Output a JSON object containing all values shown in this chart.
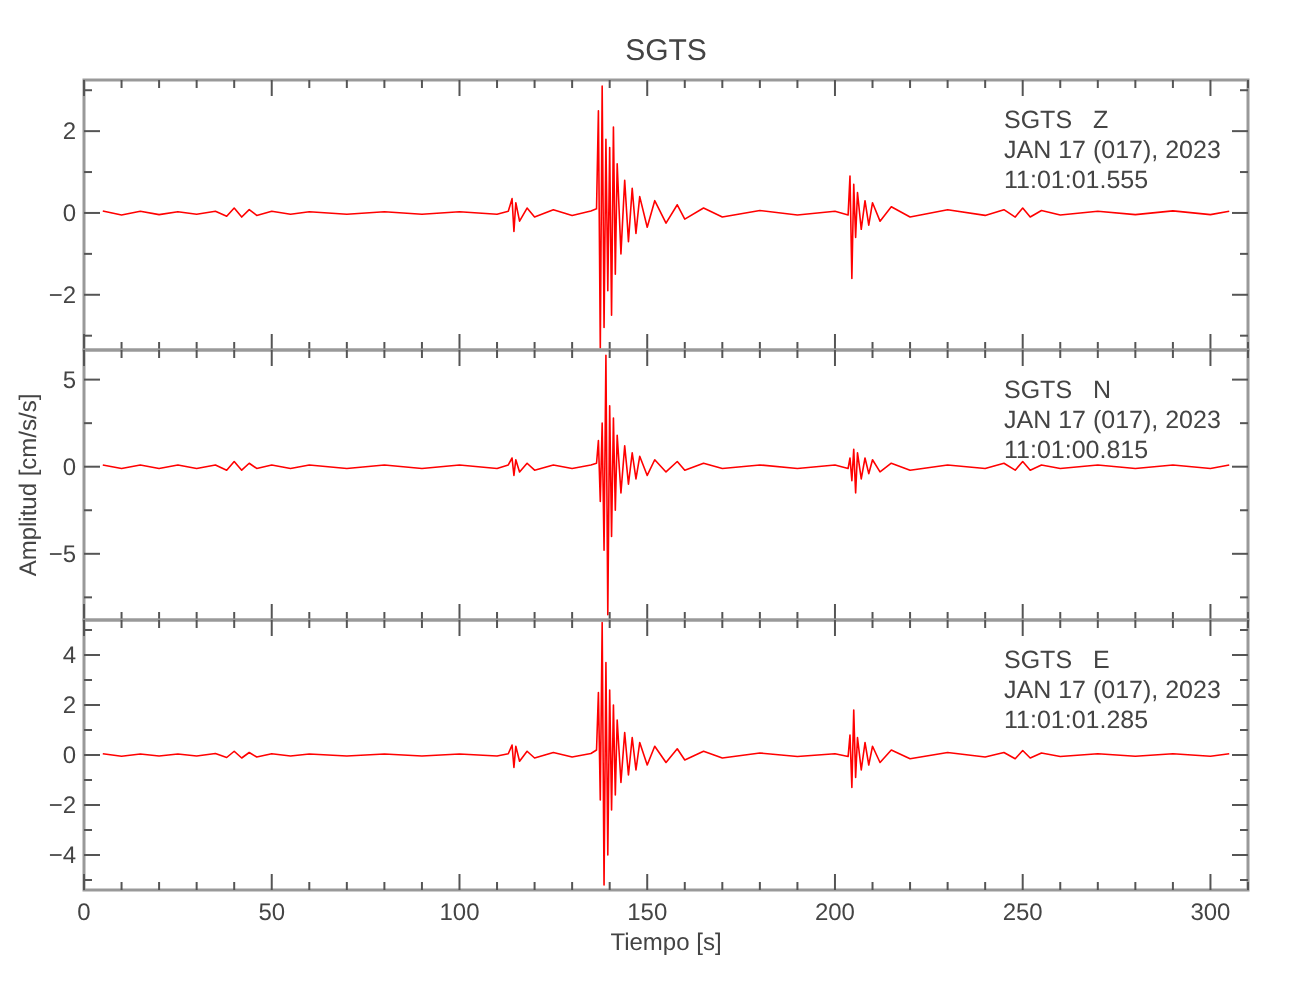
{
  "chart_data": [
    {
      "type": "line",
      "title": "SGTS",
      "annotations": [
        "SGTS   Z",
        "JAN 17 (017), 2023",
        "11:01:01.555"
      ],
      "x": [
        5,
        10,
        15,
        20,
        25,
        30,
        35,
        38,
        40,
        42,
        44,
        46,
        50,
        55,
        60,
        70,
        80,
        90,
        100,
        110,
        113,
        114,
        114.5,
        115,
        116,
        118,
        120,
        125,
        130,
        135,
        136.5,
        137,
        137.5,
        138,
        138.5,
        139,
        139.5,
        140,
        140.5,
        141,
        141.5,
        142,
        143,
        144,
        145,
        146,
        147,
        148,
        150,
        152,
        155,
        158,
        160,
        165,
        170,
        180,
        190,
        200,
        203.5,
        204,
        204.5,
        205,
        205.5,
        206,
        207,
        208,
        209,
        210,
        212,
        215,
        220,
        230,
        240,
        245,
        248,
        250,
        252,
        255,
        260,
        270,
        280,
        290,
        300,
        305
      ],
      "series": [
        {
          "color": "#ff0000",
          "values": [
            0.05,
            -0.05,
            0.04,
            -0.04,
            0.03,
            -0.03,
            0.04,
            -0.08,
            0.12,
            -0.1,
            0.08,
            -0.06,
            0.04,
            -0.03,
            0.03,
            -0.03,
            0.03,
            -0.03,
            0.03,
            -0.03,
            0.04,
            0.35,
            -0.45,
            0.25,
            -0.2,
            0.12,
            -0.1,
            0.08,
            -0.06,
            0.05,
            0.1,
            2.5,
            -3.3,
            3.1,
            -2.8,
            1.8,
            -1.9,
            1.6,
            -2.5,
            2.1,
            -1.5,
            1.2,
            -1.0,
            0.8,
            -0.7,
            0.6,
            -0.5,
            0.4,
            -0.35,
            0.3,
            -0.25,
            0.2,
            -0.15,
            0.12,
            -0.1,
            0.06,
            -0.05,
            0.04,
            -0.05,
            0.9,
            -1.6,
            0.7,
            -0.6,
            0.5,
            -0.4,
            0.3,
            -0.3,
            0.25,
            -0.2,
            0.15,
            -0.1,
            0.08,
            -0.06,
            0.08,
            -0.1,
            0.12,
            -0.1,
            0.06,
            -0.05,
            0.04,
            -0.04,
            0.05,
            -0.04,
            0.04
          ]
        }
      ],
      "xlim": [
        0,
        310
      ],
      "ylim": [
        -3.35,
        3.25
      ],
      "xticks": [
        0,
        {
          "value": 10,
          "label": null
        },
        {
          "value": 20,
          "label": null
        },
        {
          "value": 30,
          "label": null
        },
        {
          "value": 40,
          "label": null
        },
        50,
        {
          "value": 60,
          "label": null
        },
        {
          "value": 70,
          "label": null
        },
        {
          "value": 80,
          "label": null
        },
        {
          "value": 90,
          "label": null
        },
        100,
        {
          "value": 110,
          "label": null
        },
        {
          "value": 120,
          "label": null
        },
        {
          "value": 130,
          "label": null
        },
        {
          "value": 140,
          "label": null
        },
        150,
        {
          "value": 160,
          "label": null
        },
        {
          "value": 170,
          "label": null
        },
        {
          "value": 180,
          "label": null
        },
        {
          "value": 190,
          "label": null
        },
        200,
        {
          "value": 210,
          "label": null
        },
        {
          "value": 220,
          "label": null
        },
        {
          "value": 230,
          "label": null
        },
        {
          "value": 240,
          "label": null
        },
        250,
        {
          "value": 260,
          "label": null
        },
        {
          "value": 270,
          "label": null
        },
        {
          "value": 280,
          "label": null
        },
        {
          "value": 290,
          "label": null
        },
        300,
        {
          "value": 310,
          "label": null
        }
      ],
      "yticks": [
        {
          "value": -3,
          "label": null
        },
        {
          "value": -2,
          "label": "−2"
        },
        {
          "value": -1,
          "label": null
        },
        0,
        {
          "value": 1,
          "label": null
        },
        2,
        {
          "value": 3,
          "label": null
        }
      ],
      "tick_labels": "y",
      "grid": false,
      "marker": "none",
      "line_style": "solid"
    },
    {
      "type": "line",
      "ylabel": "Amplitud [cm/s/s]",
      "annotations": [
        "SGTS   N",
        "JAN 17 (017), 2023",
        "11:01:00.815"
      ],
      "x": [
        5,
        10,
        15,
        20,
        25,
        30,
        35,
        38,
        40,
        42,
        44,
        46,
        50,
        55,
        60,
        70,
        80,
        90,
        100,
        110,
        113,
        114,
        114.5,
        115,
        116,
        118,
        120,
        125,
        130,
        135,
        136.5,
        137,
        137.5,
        138,
        138.5,
        139,
        139.5,
        140,
        140.5,
        141,
        141.5,
        142,
        143,
        144,
        145,
        146,
        147,
        148,
        150,
        152,
        155,
        158,
        160,
        165,
        170,
        180,
        190,
        200,
        203.5,
        204,
        204.5,
        205,
        205.5,
        206,
        207,
        208,
        209,
        210,
        212,
        215,
        220,
        230,
        240,
        245,
        248,
        250,
        252,
        255,
        260,
        270,
        280,
        290,
        300,
        305
      ],
      "series": [
        {
          "color": "#ff0000",
          "values": [
            0.1,
            -0.1,
            0.1,
            -0.1,
            0.1,
            -0.1,
            0.1,
            -0.2,
            0.3,
            -0.2,
            0.2,
            -0.1,
            0.1,
            -0.1,
            0.1,
            -0.1,
            0.1,
            -0.1,
            0.1,
            -0.1,
            0.1,
            0.5,
            -0.5,
            0.4,
            -0.3,
            0.2,
            -0.2,
            0.1,
            -0.1,
            0.1,
            0.2,
            1.5,
            -2.0,
            2.5,
            -4.8,
            6.4,
            -8.5,
            3.5,
            -4.0,
            2.8,
            -2.5,
            1.8,
            -1.5,
            1.2,
            -1.0,
            0.8,
            -0.7,
            0.6,
            -0.5,
            0.4,
            -0.3,
            0.3,
            -0.2,
            0.2,
            -0.1,
            0.1,
            -0.1,
            0.1,
            -0.1,
            0.5,
            -0.8,
            1.0,
            -1.5,
            0.8,
            -0.7,
            0.5,
            -0.4,
            0.4,
            -0.3,
            0.2,
            -0.2,
            0.1,
            -0.1,
            0.2,
            -0.2,
            0.3,
            -0.2,
            0.1,
            -0.1,
            0.1,
            -0.1,
            0.1,
            -0.1,
            0.1
          ]
        }
      ],
      "xlim": [
        0,
        310
      ],
      "ylim": [
        -8.8,
        6.7
      ],
      "xticks": [
        0,
        {
          "value": 10,
          "label": null
        },
        {
          "value": 20,
          "label": null
        },
        {
          "value": 30,
          "label": null
        },
        {
          "value": 40,
          "label": null
        },
        50,
        {
          "value": 60,
          "label": null
        },
        {
          "value": 70,
          "label": null
        },
        {
          "value": 80,
          "label": null
        },
        {
          "value": 90,
          "label": null
        },
        100,
        {
          "value": 110,
          "label": null
        },
        {
          "value": 120,
          "label": null
        },
        {
          "value": 130,
          "label": null
        },
        {
          "value": 140,
          "label": null
        },
        150,
        {
          "value": 160,
          "label": null
        },
        {
          "value": 170,
          "label": null
        },
        {
          "value": 180,
          "label": null
        },
        {
          "value": 190,
          "label": null
        },
        200,
        {
          "value": 210,
          "label": null
        },
        {
          "value": 220,
          "label": null
        },
        {
          "value": 230,
          "label": null
        },
        {
          "value": 240,
          "label": null
        },
        250,
        {
          "value": 260,
          "label": null
        },
        {
          "value": 270,
          "label": null
        },
        {
          "value": 280,
          "label": null
        },
        {
          "value": 290,
          "label": null
        },
        300,
        {
          "value": 310,
          "label": null
        }
      ],
      "yticks": [
        {
          "value": -7.5,
          "label": null
        },
        {
          "value": -5,
          "label": "−5"
        },
        {
          "value": -2.5,
          "label": null
        },
        0,
        {
          "value": 2.5,
          "label": null
        },
        5
      ],
      "tick_labels": "y",
      "grid": false,
      "marker": "none",
      "line_style": "solid"
    },
    {
      "type": "line",
      "xlabel": "Tiempo [s]",
      "annotations": [
        "SGTS   E",
        "JAN 17 (017), 2023",
        "11:01:01.285"
      ],
      "x": [
        5,
        10,
        15,
        20,
        25,
        30,
        35,
        38,
        40,
        42,
        44,
        46,
        50,
        55,
        60,
        70,
        80,
        90,
        100,
        110,
        113,
        114,
        114.5,
        115,
        116,
        118,
        120,
        125,
        130,
        135,
        136.5,
        137,
        137.5,
        138,
        138.5,
        139,
        139.5,
        140,
        140.5,
        141,
        141.5,
        142,
        143,
        144,
        145,
        146,
        147,
        148,
        150,
        152,
        155,
        158,
        160,
        165,
        170,
        180,
        190,
        200,
        203.5,
        204,
        204.5,
        205,
        205.5,
        206,
        207,
        208,
        209,
        210,
        212,
        215,
        220,
        230,
        240,
        245,
        248,
        250,
        252,
        255,
        260,
        270,
        280,
        290,
        300,
        305
      ],
      "series": [
        {
          "color": "#ff0000",
          "values": [
            0.05,
            -0.05,
            0.04,
            -0.04,
            0.04,
            -0.04,
            0.06,
            -0.1,
            0.15,
            -0.12,
            0.1,
            -0.08,
            0.05,
            -0.04,
            0.04,
            -0.04,
            0.04,
            -0.04,
            0.04,
            -0.04,
            0.05,
            0.4,
            -0.5,
            0.35,
            -0.25,
            0.15,
            -0.12,
            0.1,
            -0.08,
            0.06,
            0.2,
            2.5,
            -1.8,
            5.3,
            -5.2,
            3.7,
            -4.0,
            2.6,
            -2.2,
            2.0,
            -1.6,
            1.4,
            -1.1,
            0.9,
            -0.8,
            0.7,
            -0.6,
            0.5,
            -0.4,
            0.35,
            -0.3,
            0.25,
            -0.2,
            0.15,
            -0.12,
            0.08,
            -0.06,
            0.05,
            -0.06,
            0.8,
            -1.3,
            1.8,
            -0.9,
            0.7,
            -0.6,
            0.5,
            -0.4,
            0.35,
            -0.3,
            0.2,
            -0.15,
            0.1,
            -0.08,
            0.1,
            -0.15,
            0.18,
            -0.12,
            0.08,
            -0.06,
            0.05,
            -0.05,
            0.05,
            -0.05,
            0.05
          ]
        }
      ],
      "xlim": [
        0,
        310
      ],
      "ylim": [
        -5.4,
        5.4
      ],
      "xticks": [
        0,
        {
          "value": 10,
          "label": null
        },
        {
          "value": 20,
          "label": null
        },
        {
          "value": 30,
          "label": null
        },
        {
          "value": 40,
          "label": null
        },
        50,
        {
          "value": 60,
          "label": null
        },
        {
          "value": 70,
          "label": null
        },
        {
          "value": 80,
          "label": null
        },
        {
          "value": 90,
          "label": null
        },
        100,
        {
          "value": 110,
          "label": null
        },
        {
          "value": 120,
          "label": null
        },
        {
          "value": 130,
          "label": null
        },
        {
          "value": 140,
          "label": null
        },
        150,
        {
          "value": 160,
          "label": null
        },
        {
          "value": 170,
          "label": null
        },
        {
          "value": 180,
          "label": null
        },
        {
          "value": 190,
          "label": null
        },
        200,
        {
          "value": 210,
          "label": null
        },
        {
          "value": 220,
          "label": null
        },
        {
          "value": 230,
          "label": null
        },
        {
          "value": 240,
          "label": null
        },
        250,
        {
          "value": 260,
          "label": null
        },
        {
          "value": 270,
          "label": null
        },
        {
          "value": 280,
          "label": null
        },
        {
          "value": 290,
          "label": null
        },
        300,
        {
          "value": 310,
          "label": null
        }
      ],
      "yticks": [
        {
          "value": -5,
          "label": null
        },
        -4,
        {
          "value": -3,
          "label": null
        },
        -2,
        {
          "value": -1,
          "label": null
        },
        0,
        {
          "value": 1,
          "label": null
        },
        2,
        {
          "value": 3,
          "label": null
        },
        4,
        {
          "value": 5,
          "label": null
        }
      ],
      "grid": false,
      "marker": "none",
      "line_style": "solid"
    }
  ]
}
